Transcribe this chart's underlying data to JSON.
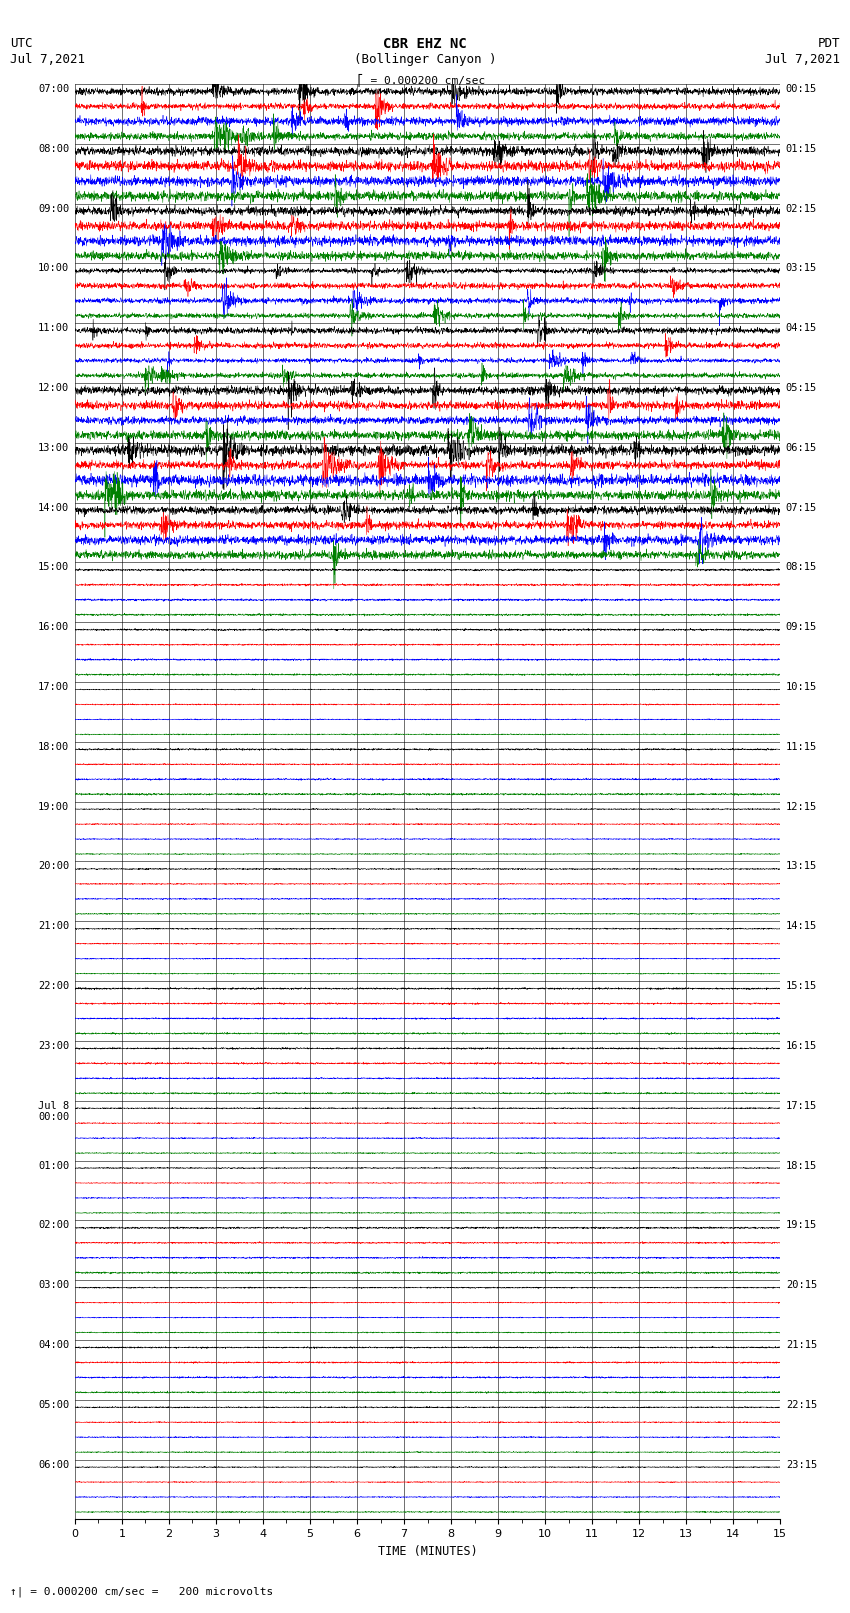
{
  "title_line1": "CBR EHZ NC",
  "title_line2": "(Bollinger Canyon )",
  "scale_text": "= 0.000200 cm/sec",
  "bottom_text": "= 0.000200 cm/sec =   200 microvolts",
  "utc_label": "UTC",
  "utc_date": "Jul 7,2021",
  "pdt_label": "PDT",
  "pdt_date": "Jul 7,2021",
  "xlabel": "TIME (MINUTES)",
  "left_times_utc": [
    "07:00",
    "08:00",
    "09:00",
    "10:00",
    "11:00",
    "12:00",
    "13:00",
    "14:00",
    "15:00",
    "16:00",
    "17:00",
    "18:00",
    "19:00",
    "20:00",
    "21:00",
    "22:00",
    "23:00",
    "Jul 8\n00:00",
    "01:00",
    "02:00",
    "03:00",
    "04:00",
    "05:00",
    "06:00"
  ],
  "right_times_pdt": [
    "00:15",
    "01:15",
    "02:15",
    "03:15",
    "04:15",
    "05:15",
    "06:15",
    "07:15",
    "08:15",
    "09:15",
    "10:15",
    "11:15",
    "12:15",
    "13:15",
    "14:15",
    "15:15",
    "16:15",
    "17:15",
    "18:15",
    "19:15",
    "20:15",
    "21:15",
    "22:15",
    "23:15"
  ],
  "num_rows": 24,
  "traces_per_row": 4,
  "colors_per_trace": [
    "black",
    "red",
    "blue",
    "green"
  ],
  "x_min": 0,
  "x_max": 15,
  "x_ticks": [
    0,
    1,
    2,
    3,
    4,
    5,
    6,
    7,
    8,
    9,
    10,
    11,
    12,
    13,
    14,
    15
  ],
  "background_color": "white",
  "noise_scale_busy": 0.42,
  "noise_scale_quiet": 0.06,
  "busy_rows": 8,
  "transition_rows": 1
}
